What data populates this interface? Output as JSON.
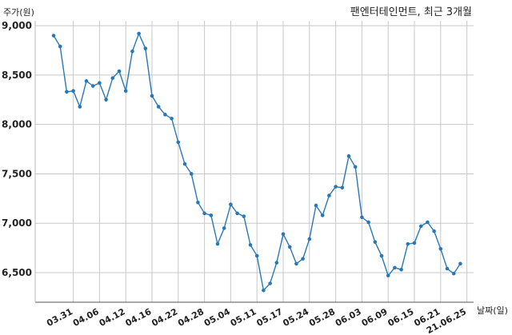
{
  "chart_data": {
    "type": "line",
    "title": "팬엔터테인먼트, 최근 3개월",
    "ylabel": "주가(원)",
    "xlabel": "날짜(일)",
    "ylim": [
      6200,
      9050
    ],
    "yticks": [
      6500,
      7000,
      7500,
      8000,
      8500,
      9000
    ],
    "ytick_labels": [
      "6,500",
      "7,000",
      "7,500",
      "8,000",
      "8,500",
      "9,000"
    ],
    "xtick_labels": [
      "03.31",
      "04.06",
      "04.12",
      "04.16",
      "04.22",
      "04.28",
      "05.04",
      "05.11",
      "05.17",
      "05.24",
      "05.28",
      "06.03",
      "06.09",
      "06.15",
      "06.21",
      "21.06.25"
    ],
    "xtick_indices": [
      3,
      7,
      11,
      15,
      19,
      23,
      27,
      31,
      35,
      39,
      43,
      47,
      51,
      55,
      59,
      63
    ],
    "grid": true,
    "colors": {
      "line": "#2878b5",
      "grid": "#c8c8c8"
    },
    "series": [
      {
        "values": [
          8900,
          8790,
          8330,
          8340,
          8180,
          8440,
          8390,
          8420,
          8250,
          8470,
          8540,
          8340,
          8740,
          8920,
          8770,
          8290,
          8180,
          8100,
          8060,
          7820,
          7600,
          7500,
          7210,
          7100,
          7080,
          6790,
          6950,
          7190,
          7100,
          7070,
          6780,
          6670,
          6320,
          6390,
          6600,
          6890,
          6760,
          6590,
          6640,
          6840,
          7180,
          7080,
          7280,
          7370,
          7360,
          7680,
          7570,
          7060,
          7010,
          6810,
          6670,
          6470,
          6550,
          6530,
          6790,
          6800,
          6970,
          7010,
          6920,
          6740,
          6540,
          6490,
          6590
        ]
      }
    ]
  }
}
